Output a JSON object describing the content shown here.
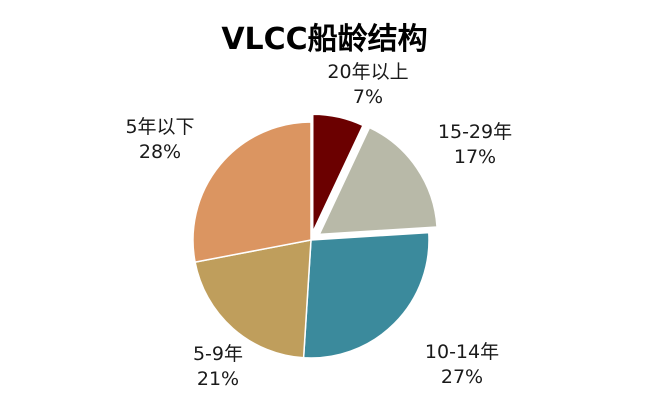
{
  "chart_data": {
    "type": "pie",
    "title": "VLCC船龄结构",
    "categories": [
      "20年以上",
      "15-29年",
      "10-14年",
      "5-9年",
      "5年以下"
    ],
    "values": [
      7,
      17,
      27,
      21,
      28
    ],
    "labels": [
      {
        "category": "20年以上",
        "percent": "7%"
      },
      {
        "category": "15-29年",
        "percent": "17%"
      },
      {
        "category": "10-14年",
        "percent": "27%"
      },
      {
        "category": "5-9年",
        "percent": "21%"
      },
      {
        "category": "5年以下",
        "percent": "28%"
      }
    ],
    "colors": [
      "#6b0000",
      "#b8b9a8",
      "#3b8a9c",
      "#bf9e5c",
      "#db9561"
    ],
    "exploded": [
      "20年以上",
      "15-29年"
    ],
    "legend": "none"
  }
}
